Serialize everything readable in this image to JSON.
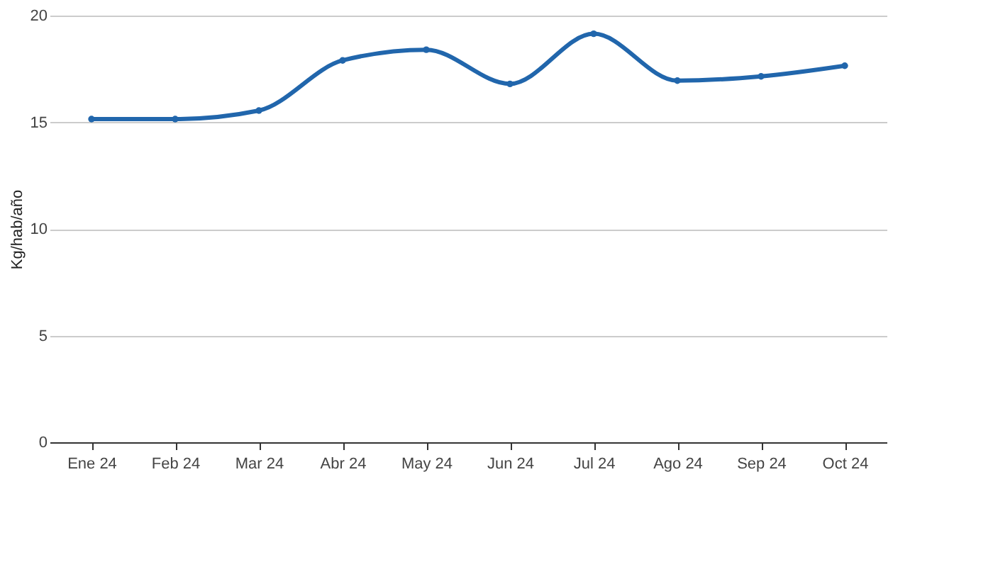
{
  "chart_data": {
    "type": "line",
    "ylabel": "Kg/hab/año",
    "categories": [
      "Ene 24",
      "Feb 24",
      "Mar 24",
      "Abr 24",
      "May 24",
      "Jun 24",
      "Jul 24",
      "Ago 24",
      "Sep 24",
      "Oct 24"
    ],
    "series": [
      {
        "color": "#2166ac",
        "values": [
          15.15,
          15.15,
          15.55,
          17.9,
          18.4,
          16.8,
          19.15,
          16.95,
          17.15,
          17.65
        ]
      }
    ],
    "ylim": [
      0,
      20
    ],
    "yticks": [
      0,
      5,
      10,
      15,
      20
    ],
    "grid": "y",
    "marker": "circle",
    "line_style": "solid"
  }
}
